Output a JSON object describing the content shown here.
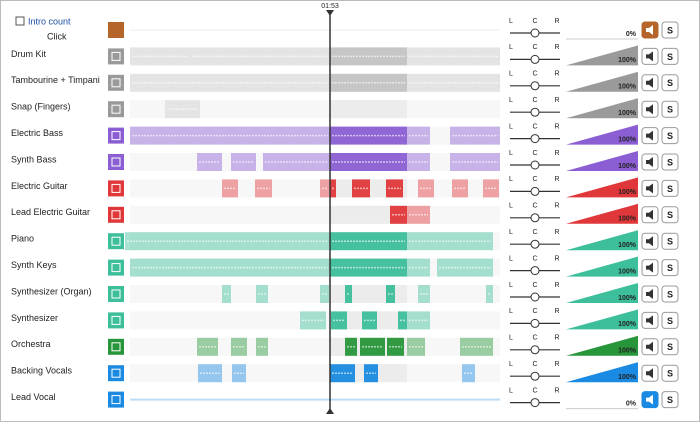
{
  "header": {
    "time": "01:53"
  },
  "click_row": {
    "intro_label": "Intro count",
    "name": "Click",
    "color": "#b5652a",
    "volume": "0%",
    "muted": true
  },
  "pan_labels": [
    "L",
    "C",
    "R"
  ],
  "solo_label": "S",
  "tracks": [
    {
      "name": "Drum Kit",
      "color": "#9a9a9a",
      "volume": "100%"
    },
    {
      "name": "Tambourine + Timpani",
      "color": "#9a9a9a",
      "volume": "100%"
    },
    {
      "name": "Snap (Fingers)",
      "color": "#9a9a9a",
      "volume": "100%"
    },
    {
      "name": "Electric Bass",
      "color": "#8b5fd3",
      "volume": "100%"
    },
    {
      "name": "Synth Bass",
      "color": "#8b5fd3",
      "volume": "100%"
    },
    {
      "name": "Electric Guitar",
      "color": "#e0383a",
      "volume": "100%"
    },
    {
      "name": "Lead Electric Guitar",
      "color": "#e0383a",
      "volume": "100%"
    },
    {
      "name": "Piano",
      "color": "#3dbf9c",
      "volume": "100%"
    },
    {
      "name": "Synth Keys",
      "color": "#3dbf9c",
      "volume": "100%"
    },
    {
      "name": "Synthesizer (Organ)",
      "color": "#3dbf9c",
      "volume": "100%"
    },
    {
      "name": "Synthesizer",
      "color": "#3dbf9c",
      "volume": "100%"
    },
    {
      "name": "Orchestra",
      "color": "#27963a",
      "volume": "100%"
    },
    {
      "name": "Backing Vocals",
      "color": "#1a8ae2",
      "volume": "100%"
    },
    {
      "name": "Lead Vocal",
      "color": "#1a8ae2",
      "volume": "0%",
      "muted": true
    }
  ]
}
